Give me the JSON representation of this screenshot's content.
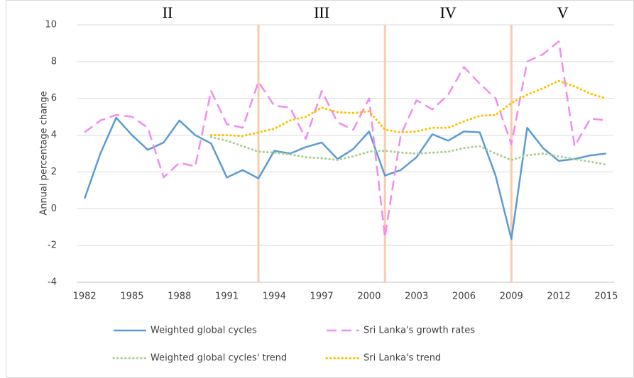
{
  "chart_data": {
    "type": "line",
    "y_axis_label": "Annual percentage change",
    "x": [
      1982,
      1983,
      1984,
      1985,
      1986,
      1987,
      1988,
      1989,
      1990,
      1991,
      1992,
      1993,
      1994,
      1995,
      1996,
      1997,
      1998,
      1999,
      2000,
      2001,
      2002,
      2003,
      2004,
      2005,
      2006,
      2007,
      2008,
      2009,
      2010,
      2011,
      2012,
      2013,
      2014,
      2015
    ],
    "xlim": [
      1982,
      2015
    ],
    "xticks": [
      1982,
      1985,
      1988,
      1991,
      1994,
      1997,
      2000,
      2003,
      2006,
      2009,
      2012,
      2015
    ],
    "ylim": [
      -4,
      10
    ],
    "yticks": [
      -4,
      -2,
      0,
      2,
      4,
      6,
      8,
      10
    ],
    "grid": true,
    "period_dividers": [
      1993,
      2001,
      2009
    ],
    "divider_color": "#f8cbad",
    "period_labels": [
      "II",
      "III",
      "IV",
      "V"
    ],
    "legend": "bottom",
    "series": [
      {
        "name": "Weighted global cycles",
        "color": "#5b9bd5",
        "line_style": "solid",
        "values": [
          0.55,
          3.0,
          4.95,
          4.0,
          3.2,
          3.6,
          4.8,
          4.0,
          3.55,
          1.7,
          2.1,
          1.65,
          3.15,
          3.0,
          3.35,
          3.6,
          2.7,
          3.25,
          4.2,
          1.8,
          2.1,
          2.8,
          4.05,
          3.7,
          4.2,
          4.15,
          1.8,
          -1.65,
          4.4,
          3.3,
          2.6,
          2.7,
          2.9,
          3.0
        ]
      },
      {
        "name": "Sri Lanka's growth rates",
        "color": "#f08cf0",
        "line_style": "dashed",
        "values": [
          4.15,
          4.8,
          5.1,
          5.0,
          4.4,
          1.7,
          2.5,
          2.3,
          6.4,
          4.6,
          4.4,
          6.9,
          5.6,
          5.5,
          3.8,
          6.4,
          4.7,
          4.3,
          6.0,
          -1.55,
          4.0,
          5.9,
          5.4,
          6.2,
          7.7,
          6.8,
          6.0,
          3.5,
          8.0,
          8.4,
          9.1,
          3.4,
          4.9,
          4.8
        ]
      },
      {
        "name": "Weighted global cycles' trend",
        "color": "#a9d18e",
        "line_style": "dotted",
        "values": [
          null,
          null,
          null,
          null,
          null,
          null,
          null,
          null,
          3.9,
          3.7,
          3.4,
          3.1,
          3.05,
          2.95,
          2.8,
          2.75,
          2.65,
          2.85,
          3.1,
          3.15,
          3.05,
          3.0,
          3.05,
          3.1,
          3.3,
          3.4,
          3.0,
          2.65,
          2.9,
          3.0,
          2.85,
          2.7,
          2.55,
          2.4
        ]
      },
      {
        "name": "Sri Lanka's trend",
        "color": "#ffc000",
        "line_style": "dotted",
        "values": [
          null,
          null,
          null,
          null,
          null,
          null,
          null,
          null,
          4.0,
          4.0,
          3.95,
          4.15,
          4.35,
          4.8,
          5.0,
          5.5,
          5.25,
          5.2,
          5.3,
          4.3,
          4.15,
          4.2,
          4.4,
          4.4,
          4.75,
          5.05,
          5.1,
          5.75,
          6.2,
          6.55,
          6.95,
          6.65,
          6.25,
          6.0
        ]
      }
    ]
  }
}
